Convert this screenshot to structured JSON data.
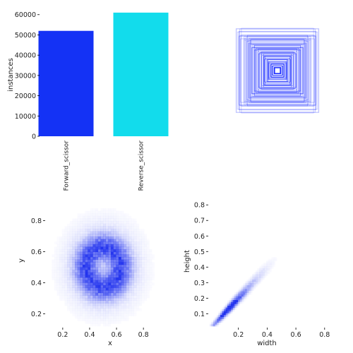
{
  "colors": {
    "forward": "#1432f5",
    "reverse": "#12dcec",
    "box_stroke": "#1a2cff",
    "density": "#2233ee",
    "axis": "#000000"
  },
  "chart_data": [
    {
      "id": "class-counts",
      "type": "bar",
      "categories": [
        "Forward_scissor",
        "Reverse_scissor"
      ],
      "values": [
        52000,
        61000
      ],
      "ylabel": "instances",
      "ylim": [
        0,
        62000
      ],
      "yticks": [
        0,
        10000,
        20000,
        30000,
        40000,
        50000,
        60000
      ],
      "ytick_labels": [
        "0",
        "10000",
        "20000",
        "30000",
        "40000",
        "50000",
        "60000"
      ],
      "grid": false
    },
    {
      "id": "box-overlay",
      "type": "other",
      "description_free": true,
      "box_size_fractions": [
        0.98,
        0.93,
        0.88,
        0.84,
        0.8,
        0.76,
        0.72,
        0.68,
        0.64,
        0.6,
        0.56,
        0.52,
        0.48,
        0.44,
        0.4,
        0.36,
        0.32,
        0.28,
        0.24,
        0.2,
        0.16,
        0.12,
        0.08,
        0.05
      ]
    },
    {
      "id": "xy-density",
      "type": "heatmap",
      "xlabel": "x",
      "ylabel": "y",
      "xlim": [
        0.08,
        0.92
      ],
      "ylim": [
        0.12,
        0.88
      ],
      "xticks": [
        0.2,
        0.4,
        0.6,
        0.8
      ],
      "xtick_labels": [
        "0.2",
        "0.4",
        "0.6",
        "0.8"
      ],
      "yticks": [
        0.2,
        0.4,
        0.6,
        0.8
      ],
      "ytick_labels": [
        "0.2",
        "0.4",
        "0.6",
        "0.8"
      ],
      "pattern": "ring centered near (0.5, 0.5), radius about 0.13"
    },
    {
      "id": "wh-density",
      "type": "heatmap",
      "xlabel": "width",
      "ylabel": "height",
      "xlim": [
        0.0,
        0.86
      ],
      "ylim": [
        0.02,
        0.86
      ],
      "xticks": [
        0.2,
        0.4,
        0.6,
        0.8
      ],
      "xtick_labels": [
        "0.2",
        "0.4",
        "0.6",
        "0.8"
      ],
      "yticks": [
        0.1,
        0.2,
        0.3,
        0.4,
        0.5,
        0.6,
        0.7,
        0.8
      ],
      "ytick_labels": [
        "0.1",
        "0.2",
        "0.3",
        "0.4",
        "0.5",
        "0.6",
        "0.7",
        "0.8"
      ],
      "pattern": "diagonal band width≈height, peak near 0.13"
    }
  ]
}
